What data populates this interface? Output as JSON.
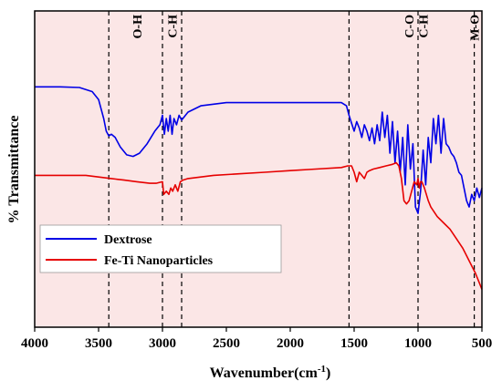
{
  "chart_data": {
    "type": "line",
    "xlabel": "Wavenumber(cm",
    "xlabel_sup": "-1",
    "xlabel_end": ")",
    "ylabel": "% Transmittance",
    "xlim": [
      4000,
      500
    ],
    "x_reversed": true,
    "x_ticks": [
      "4000",
      "3500",
      "3000",
      "2500",
      "2000",
      "1500",
      "1000",
      "500"
    ],
    "x_tick_values": [
      4000,
      3500,
      3000,
      2500,
      2000,
      1500,
      1000,
      500
    ],
    "ylim": [
      0,
      100
    ],
    "y_ticks_shown": false,
    "background_color": "#fbe6e6",
    "grid": false,
    "legend_position": "lower-left",
    "band_markers": [
      {
        "x": 3420,
        "label": "O-H",
        "label_x": 3200
      },
      {
        "x": 3000,
        "label": "C-H",
        "label_x": 2925
      },
      {
        "x": 2850,
        "label": "",
        "label_x": null
      },
      {
        "x": 1540,
        "label": "",
        "label_x": null
      },
      {
        "x": 1000,
        "label": "C-O",
        "label_x": 1070
      },
      {
        "x": 1000,
        "label": "C-H",
        "label_x": 960
      },
      {
        "x": 560,
        "label": "M-O",
        "label_x": 560
      }
    ],
    "series": [
      {
        "name": "Dextrose",
        "color": "#0000e6",
        "x": [
          4000,
          3800,
          3650,
          3550,
          3500,
          3460,
          3440,
          3420,
          3400,
          3370,
          3330,
          3280,
          3230,
          3180,
          3120,
          3060,
          3020,
          3000,
          2985,
          2970,
          2955,
          2940,
          2925,
          2910,
          2890,
          2870,
          2850,
          2800,
          2700,
          2500,
          2200,
          2000,
          1800,
          1600,
          1560,
          1540,
          1500,
          1480,
          1460,
          1440,
          1420,
          1400,
          1380,
          1360,
          1340,
          1320,
          1300,
          1280,
          1260,
          1240,
          1220,
          1200,
          1180,
          1160,
          1140,
          1120,
          1100,
          1080,
          1060,
          1040,
          1020,
          1000,
          980,
          960,
          940,
          920,
          900,
          880,
          860,
          840,
          820,
          800,
          780,
          760,
          740,
          720,
          700,
          680,
          660,
          640,
          620,
          600,
          580,
          560,
          540,
          520,
          500
        ],
        "values": [
          76,
          76,
          75.8,
          74.5,
          72,
          66,
          62,
          60.5,
          61,
          60,
          57,
          54.5,
          54,
          55,
          58,
          62,
          64,
          67,
          61,
          66,
          62,
          67,
          61,
          66,
          64,
          67,
          65.5,
          68,
          70,
          71,
          71,
          71,
          71,
          71,
          70,
          67,
          62,
          65,
          63,
          60,
          64,
          62,
          59,
          63,
          58,
          64,
          59,
          68,
          60,
          67,
          55,
          65,
          52,
          62,
          49,
          60,
          45,
          64,
          50,
          58,
          38,
          36,
          43,
          56,
          45,
          60,
          52,
          66,
          58,
          67,
          55,
          66,
          58,
          57,
          55,
          54,
          52,
          49,
          48,
          44,
          40,
          38,
          42,
          40,
          44,
          41,
          44
        ]
      },
      {
        "name": "Fe-Ti Nanoparticles",
        "color": "#e60000",
        "x": [
          4000,
          3800,
          3600,
          3500,
          3400,
          3300,
          3200,
          3100,
          3050,
          3000,
          2990,
          2970,
          2950,
          2935,
          2920,
          2900,
          2880,
          2860,
          2840,
          2800,
          2600,
          2400,
          2200,
          2000,
          1800,
          1600,
          1550,
          1520,
          1500,
          1480,
          1460,
          1440,
          1420,
          1400,
          1380,
          1350,
          1300,
          1250,
          1200,
          1170,
          1150,
          1130,
          1110,
          1090,
          1070,
          1050,
          1030,
          1010,
          1000,
          990,
          980,
          970,
          950,
          920,
          900,
          850,
          800,
          750,
          700,
          650,
          600,
          550,
          520,
          500
        ],
        "values": [
          48,
          48,
          48,
          47.5,
          47,
          46.5,
          46,
          45.5,
          45.5,
          46,
          42,
          43,
          42,
          44,
          43,
          45,
          43,
          46,
          46.5,
          47,
          48,
          48.5,
          49,
          49.5,
          50,
          50.5,
          51,
          51,
          49,
          46,
          49,
          48,
          47,
          49,
          49.5,
          50,
          50.5,
          51,
          51.5,
          52,
          51,
          47,
          40,
          39,
          40,
          43,
          46,
          45,
          47,
          44,
          46,
          46,
          44,
          40,
          38,
          35,
          33,
          31,
          28,
          25,
          21,
          17,
          14,
          12
        ]
      }
    ]
  }
}
